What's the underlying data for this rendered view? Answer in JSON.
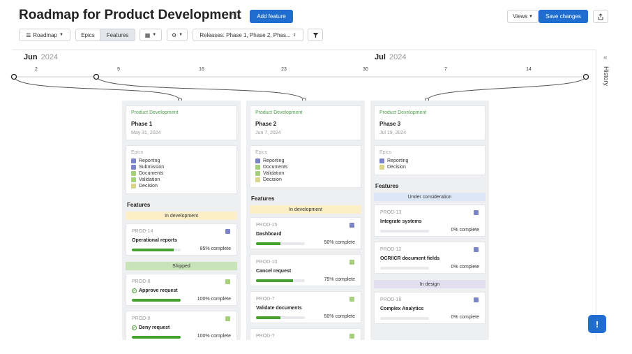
{
  "header": {
    "title": "Roadmap for Product Development",
    "add_feature": "Add feature",
    "views": "Views",
    "save_changes": "Save changes"
  },
  "toolbar": {
    "roadmap": "Roadmap",
    "epics": "Epics",
    "features": "Features",
    "releases": "Releases: Phase 1, Phase 2, Phas..."
  },
  "timeline": {
    "months": [
      {
        "name": "Jun",
        "year": "2024"
      },
      {
        "name": "Jul",
        "year": "2024"
      }
    ],
    "ticks": [
      "2",
      "9",
      "16",
      "23",
      "30",
      "7",
      "14"
    ]
  },
  "history_label": "History",
  "colors": {
    "primary": "#1f6ecf",
    "progress": "#45a02f",
    "in_development": "#fcefc8",
    "shipped": "#c9e3b9",
    "under_consideration": "#dbe7f6",
    "in_design": "#e3dff0",
    "epic_purple": "#7b84c7",
    "epic_green": "#a7d07c",
    "epic_yellow": "#d9d58a"
  },
  "phases": [
    {
      "dept": "Product Development",
      "name": "Phase 1",
      "date": "May 31, 2024",
      "epics_label": "Epics",
      "epics": [
        {
          "label": "Reporting",
          "icon": "purple"
        },
        {
          "label": "Submission",
          "icon": "purple"
        },
        {
          "label": "Documents",
          "icon": "green"
        },
        {
          "label": "Validation",
          "icon": "green"
        },
        {
          "label": "Decision",
          "icon": "yellow"
        }
      ],
      "features_label": "Features",
      "groups": [
        {
          "status": "In development",
          "kind": "in_development",
          "items": [
            {
              "id": "PROD-14",
              "name": "Operational reports",
              "progress": 85,
              "pct": "85% complete",
              "icon": "purple",
              "check": false
            }
          ]
        },
        {
          "status": "Shipped",
          "kind": "shipped",
          "items": [
            {
              "id": "PROD-8",
              "name": "Approve request",
              "progress": 100,
              "pct": "100% complete",
              "icon": "green",
              "check": true
            },
            {
              "id": "PROD-9",
              "name": "Deny request",
              "progress": 100,
              "pct": "100% complete",
              "icon": "green",
              "check": true
            }
          ]
        }
      ]
    },
    {
      "dept": "Product Development",
      "name": "Phase 2",
      "date": "Jun 7, 2024",
      "epics_label": "Epics",
      "epics": [
        {
          "label": "Reporting",
          "icon": "purple"
        },
        {
          "label": "Documents",
          "icon": "green"
        },
        {
          "label": "Validation",
          "icon": "green"
        },
        {
          "label": "Decision",
          "icon": "yellow"
        }
      ],
      "features_label": "Features",
      "groups": [
        {
          "status": "In development",
          "kind": "in_development",
          "items": [
            {
              "id": "PROD-15",
              "name": "Dashboard",
              "progress": 50,
              "pct": "50% complete",
              "icon": "purple",
              "check": false
            },
            {
              "id": "PROD-10",
              "name": "Cancel request",
              "progress": 75,
              "pct": "75% complete",
              "icon": "green",
              "check": false
            },
            {
              "id": "PROD-7",
              "name": "Validate documents",
              "progress": 50,
              "pct": "50% complete",
              "icon": "green",
              "check": false
            },
            {
              "id": "PROD-?",
              "name": "",
              "progress": 0,
              "pct": "",
              "icon": "green",
              "check": false
            }
          ]
        }
      ]
    },
    {
      "dept": "Product Development",
      "name": "Phase 3",
      "date": "Jul 19, 2024",
      "epics_label": "Epics",
      "epics": [
        {
          "label": "Reporting",
          "icon": "purple"
        },
        {
          "label": "Decision",
          "icon": "yellow"
        }
      ],
      "features_label": "Features",
      "groups": [
        {
          "status": "Under consideration",
          "kind": "under_consideration",
          "items": [
            {
              "id": "PROD-13",
              "name": "Integrate systems",
              "progress": 0,
              "pct": "0% complete",
              "icon": "purple",
              "check": false
            },
            {
              "id": "PROD-12",
              "name": "OCR/ICR document fields",
              "progress": 0,
              "pct": "0% complete",
              "icon": "purple",
              "check": false
            }
          ]
        },
        {
          "status": "In design",
          "kind": "in_design",
          "items": [
            {
              "id": "PROD-16",
              "name": "Complex Analytics",
              "progress": 0,
              "pct": "0% complete",
              "icon": "purple",
              "check": false
            }
          ]
        }
      ]
    }
  ]
}
